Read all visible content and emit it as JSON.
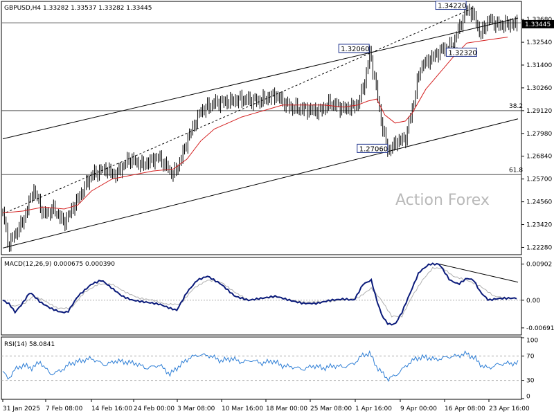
{
  "symbol_header": "GBPUSD,H4  1.33282 1.33537 1.33282 1.33445",
  "watermark": "Action Forex",
  "chart_data": [
    {
      "type": "candlestick",
      "title": "GBPUSD,H4",
      "ohlc_last": {
        "open": 1.33282,
        "high": 1.33537,
        "low": 1.33282,
        "close": 1.33445
      },
      "current_price_label": "1.33445",
      "ylim": [
        1.2195,
        1.3455
      ],
      "y_ticks": [
        "1.33680",
        "1.32540",
        "1.31400",
        "1.30260",
        "1.29120",
        "1.27980",
        "1.26840",
        "1.25700",
        "1.24560",
        "1.23420",
        "1.22280"
      ],
      "x_ticks": [
        "31 Jan 2025",
        "7 Feb 08:00",
        "14 Feb 16:00",
        "24 Feb 00:00",
        "3 Mar 08:00",
        "10 Mar 16:00",
        "18 Mar 00:00",
        "25 Mar 08:00",
        "1 Apr 16:00",
        "9 Apr 00:00",
        "16 Apr 08:00",
        "23 Apr 16:00"
      ],
      "price_path": [
        [
          0,
          1.241
        ],
        [
          8,
          1.224
        ],
        [
          30,
          1.236
        ],
        [
          45,
          1.252
        ],
        [
          60,
          1.239
        ],
        [
          75,
          1.242
        ],
        [
          90,
          1.235
        ],
        [
          110,
          1.247
        ],
        [
          130,
          1.259
        ],
        [
          150,
          1.262
        ],
        [
          165,
          1.259
        ],
        [
          185,
          1.267
        ],
        [
          205,
          1.264
        ],
        [
          228,
          1.268
        ],
        [
          250,
          1.259
        ],
        [
          260,
          1.266
        ],
        [
          272,
          1.278
        ],
        [
          290,
          1.291
        ],
        [
          310,
          1.295
        ],
        [
          335,
          1.296
        ],
        [
          350,
          1.297
        ],
        [
          375,
          1.296
        ],
        [
          400,
          1.299
        ],
        [
          420,
          1.293
        ],
        [
          440,
          1.292
        ],
        [
          465,
          1.291
        ],
        [
          480,
          1.295
        ],
        [
          500,
          1.292
        ],
        [
          520,
          1.294
        ],
        [
          530,
          1.305
        ],
        [
          538,
          1.3206
        ],
        [
          548,
          1.301
        ],
        [
          556,
          1.283
        ],
        [
          565,
          1.2706
        ],
        [
          578,
          1.276
        ],
        [
          590,
          1.277
        ],
        [
          600,
          1.292
        ],
        [
          612,
          1.313
        ],
        [
          630,
          1.318
        ],
        [
          645,
          1.322
        ],
        [
          658,
          1.3232
        ],
        [
          668,
          1.332
        ],
        [
          680,
          1.3422
        ],
        [
          690,
          1.339
        ],
        [
          700,
          1.329
        ],
        [
          712,
          1.337
        ],
        [
          725,
          1.334
        ],
        [
          740,
          1.3345
        ]
      ],
      "ma_path": [
        [
          0,
          1.24
        ],
        [
          30,
          1.241
        ],
        [
          60,
          1.243
        ],
        [
          90,
          1.242
        ],
        [
          110,
          1.244
        ],
        [
          130,
          1.251
        ],
        [
          160,
          1.257
        ],
        [
          190,
          1.259
        ],
        [
          220,
          1.261
        ],
        [
          250,
          1.262
        ],
        [
          270,
          1.267
        ],
        [
          290,
          1.276
        ],
        [
          310,
          1.282
        ],
        [
          330,
          1.285
        ],
        [
          350,
          1.288
        ],
        [
          370,
          1.29
        ],
        [
          390,
          1.292
        ],
        [
          410,
          1.294
        ],
        [
          440,
          1.294
        ],
        [
          470,
          1.294
        ],
        [
          500,
          1.293
        ],
        [
          520,
          1.294
        ],
        [
          535,
          1.296
        ],
        [
          548,
          1.297
        ],
        [
          560,
          1.289
        ],
        [
          575,
          1.285
        ],
        [
          590,
          1.286
        ],
        [
          600,
          1.29
        ],
        [
          620,
          1.302
        ],
        [
          640,
          1.31
        ],
        [
          660,
          1.318
        ],
        [
          680,
          1.325
        ],
        [
          700,
          1.326
        ],
        [
          720,
          1.327
        ],
        [
          740,
          1.328
        ]
      ],
      "annotations": [
        {
          "label": "1.34220",
          "price": 1.3422,
          "xi": 680
        },
        {
          "label": "1.32060",
          "price": 1.3206,
          "xi": 538
        },
        {
          "label": "1.32320",
          "price": 1.3232,
          "xi": 658
        },
        {
          "label": "1.27060",
          "price": 1.2706,
          "xi": 565
        }
      ],
      "fib_levels": [
        {
          "label": "38.2",
          "price": 1.2912
        },
        {
          "label": "61.8",
          "price": 1.2592
        }
      ],
      "channel_upper": [
        [
          0,
          1.2771
        ],
        [
          755,
          1.3375
        ]
      ],
      "channel_lower": [
        [
          0,
          1.2225
        ],
        [
          755,
          1.2871
        ]
      ],
      "trend_dashed": [
        [
          5,
          1.2403
        ],
        [
          690,
          1.3426
        ]
      ],
      "horizontal_resistance": 1.3351
    },
    {
      "type": "line",
      "title": "MACD(12,26,9) 0.000675 0.000390",
      "ylim": [
        -0.0085,
        0.0105
      ],
      "y_ticks": [
        "0.00902",
        "0.00",
        "-0.006915"
      ],
      "macd_path": [
        [
          0,
          0.0
        ],
        [
          10,
          -0.001
        ],
        [
          18,
          -0.003
        ],
        [
          28,
          -0.001
        ],
        [
          40,
          0.002
        ],
        [
          55,
          -0.0005
        ],
        [
          70,
          -0.002
        ],
        [
          85,
          -0.003
        ],
        [
          95,
          -0.003
        ],
        [
          110,
          0.001
        ],
        [
          130,
          0.004
        ],
        [
          145,
          0.005
        ],
        [
          160,
          0.003
        ],
        [
          175,
          0.001
        ],
        [
          190,
          0.0
        ],
        [
          210,
          -0.0005
        ],
        [
          230,
          -0.001
        ],
        [
          245,
          -0.002
        ],
        [
          255,
          -0.0025
        ],
        [
          270,
          0.002
        ],
        [
          285,
          0.005
        ],
        [
          300,
          0.006
        ],
        [
          320,
          0.004
        ],
        [
          340,
          0.001
        ],
        [
          360,
          0.0
        ],
        [
          380,
          0.0005
        ],
        [
          400,
          0.001
        ],
        [
          420,
          0.0
        ],
        [
          440,
          -0.0008
        ],
        [
          460,
          -0.0008
        ],
        [
          480,
          0.0
        ],
        [
          500,
          0.0003
        ],
        [
          515,
          0.0
        ],
        [
          528,
          0.004
        ],
        [
          540,
          0.005
        ],
        [
          548,
          0.0
        ],
        [
          556,
          -0.004
        ],
        [
          565,
          -0.006
        ],
        [
          575,
          -0.006
        ],
        [
          585,
          -0.003
        ],
        [
          595,
          0.001
        ],
        [
          610,
          0.007
        ],
        [
          625,
          0.009
        ],
        [
          640,
          0.009
        ],
        [
          655,
          0.005
        ],
        [
          668,
          0.004
        ],
        [
          680,
          0.0055
        ],
        [
          690,
          0.005
        ],
        [
          700,
          0.002
        ],
        [
          712,
          0.0
        ],
        [
          725,
          0.0004
        ],
        [
          740,
          0.0005
        ]
      ],
      "signal_path": [
        [
          0,
          0.0
        ],
        [
          15,
          -0.0015
        ],
        [
          30,
          -0.001
        ],
        [
          45,
          0.001
        ],
        [
          60,
          0.0
        ],
        [
          80,
          -0.002
        ],
        [
          100,
          -0.002
        ],
        [
          120,
          0.002
        ],
        [
          140,
          0.004
        ],
        [
          160,
          0.004
        ],
        [
          180,
          0.002
        ],
        [
          200,
          0.0005
        ],
        [
          220,
          0.0
        ],
        [
          240,
          -0.001
        ],
        [
          260,
          -0.001
        ],
        [
          280,
          0.003
        ],
        [
          300,
          0.005
        ],
        [
          320,
          0.0045
        ],
        [
          340,
          0.002
        ],
        [
          360,
          0.0
        ],
        [
          400,
          0.0008
        ],
        [
          440,
          -0.0005
        ],
        [
          480,
          -0.0003
        ],
        [
          520,
          0.0005
        ],
        [
          540,
          0.003
        ],
        [
          555,
          0.0
        ],
        [
          570,
          -0.004
        ],
        [
          585,
          -0.004
        ],
        [
          600,
          0.001
        ],
        [
          615,
          0.005
        ],
        [
          630,
          0.008
        ],
        [
          645,
          0.008
        ],
        [
          660,
          0.006
        ],
        [
          680,
          0.005
        ],
        [
          700,
          0.0035
        ],
        [
          720,
          0.001
        ],
        [
          740,
          0.0005
        ]
      ],
      "trendline": [
        [
          640,
          0.009
        ],
        [
          755,
          0.0045
        ]
      ]
    },
    {
      "type": "line",
      "title": "RSI(14) 58.0841",
      "ylim": [
        0,
        100
      ],
      "y_ticks": [
        "100",
        "70",
        "30",
        "0"
      ],
      "levels": [
        70,
        30
      ],
      "rsi_path": [
        [
          0,
          45
        ],
        [
          8,
          32
        ],
        [
          18,
          48
        ],
        [
          30,
          55
        ],
        [
          42,
          50
        ],
        [
          55,
          60
        ],
        [
          70,
          40
        ],
        [
          85,
          46
        ],
        [
          100,
          58
        ],
        [
          115,
          62
        ],
        [
          130,
          66
        ],
        [
          150,
          55
        ],
        [
          165,
          62
        ],
        [
          180,
          60
        ],
        [
          195,
          58
        ],
        [
          210,
          50
        ],
        [
          230,
          55
        ],
        [
          245,
          40
        ],
        [
          260,
          55
        ],
        [
          275,
          68
        ],
        [
          290,
          72
        ],
        [
          305,
          70
        ],
        [
          320,
          62
        ],
        [
          335,
          66
        ],
        [
          350,
          60
        ],
        [
          365,
          63
        ],
        [
          380,
          58
        ],
        [
          395,
          62
        ],
        [
          410,
          54
        ],
        [
          425,
          52
        ],
        [
          440,
          48
        ],
        [
          455,
          54
        ],
        [
          470,
          50
        ],
        [
          485,
          54
        ],
        [
          500,
          52
        ],
        [
          515,
          58
        ],
        [
          528,
          72
        ],
        [
          538,
          74
        ],
        [
          548,
          52
        ],
        [
          556,
          42
        ],
        [
          565,
          32
        ],
        [
          578,
          40
        ],
        [
          592,
          55
        ],
        [
          605,
          66
        ],
        [
          620,
          68
        ],
        [
          635,
          64
        ],
        [
          650,
          68
        ],
        [
          665,
          70
        ],
        [
          680,
          74
        ],
        [
          692,
          66
        ],
        [
          702,
          54
        ],
        [
          712,
          50
        ],
        [
          725,
          56
        ],
        [
          740,
          58
        ]
      ]
    }
  ]
}
